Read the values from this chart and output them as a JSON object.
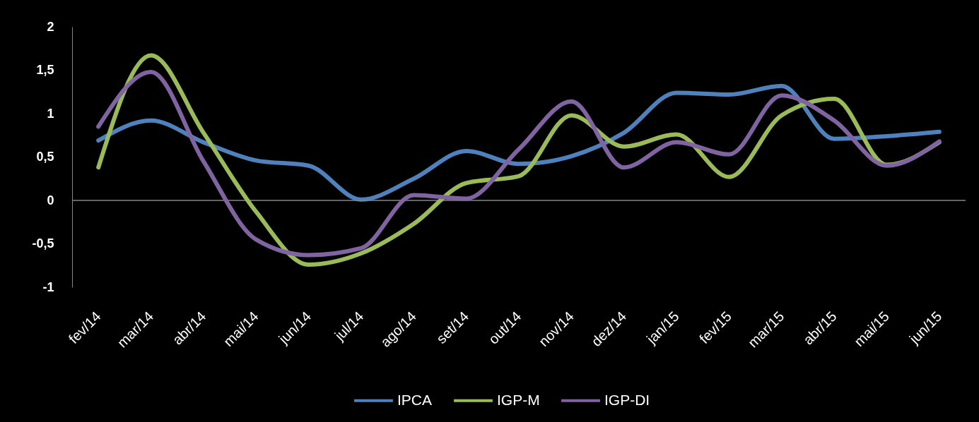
{
  "chart_data": {
    "type": "line",
    "categories": [
      "fev/14",
      "mar/14",
      "abr/14",
      "mai/14",
      "jun/14",
      "jul/14",
      "ago/14",
      "set/14",
      "out/14",
      "nov/14",
      "dez/14",
      "jan/15",
      "fev/15",
      "mar/15",
      "abr/15",
      "mai/15",
      "jun/15"
    ],
    "series": [
      {
        "name": "IPCA",
        "color": "#4f81bd",
        "values": [
          0.69,
          0.92,
          0.67,
          0.46,
          0.4,
          0.01,
          0.25,
          0.57,
          0.42,
          0.51,
          0.78,
          1.24,
          1.22,
          1.32,
          0.71,
          0.74,
          0.79
        ]
      },
      {
        "name": "IGP-M",
        "color": "#9bbb59",
        "values": [
          0.38,
          1.67,
          0.78,
          -0.13,
          -0.74,
          -0.61,
          -0.27,
          0.2,
          0.28,
          0.98,
          0.62,
          0.76,
          0.27,
          0.98,
          1.17,
          0.41,
          0.67
        ]
      },
      {
        "name": "IGP-DI",
        "color": "#8064a2",
        "values": [
          0.85,
          1.48,
          0.45,
          -0.45,
          -0.63,
          -0.55,
          0.06,
          0.02,
          0.59,
          1.14,
          0.38,
          0.67,
          0.53,
          1.21,
          0.92,
          0.4,
          0.68
        ]
      }
    ],
    "ylim": [
      -1,
      2
    ],
    "yticks": [
      -1,
      {
        "value": -0.5,
        "label": "-0,5"
      },
      0,
      {
        "value": 0.5,
        "label": "0,5"
      },
      1,
      {
        "value": 1.5,
        "label": "1,5"
      },
      2
    ],
    "grid": false,
    "legend": "bottom",
    "marker": "none",
    "line_style": "solid",
    "ref_lines": [
      {
        "axis": "y",
        "value": 0,
        "color": "#868686"
      }
    ]
  }
}
